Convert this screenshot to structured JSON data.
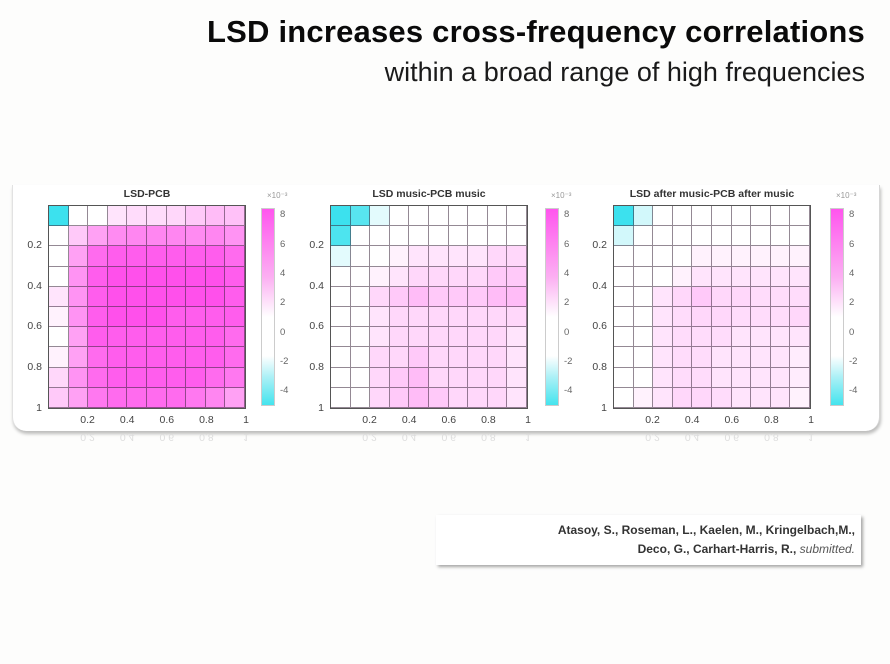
{
  "header": {
    "title": "LSD increases cross-frequency correlations",
    "subtitle": "within a broad range of high frequencies"
  },
  "citation": {
    "line1": "Atasoy, S., Roseman, L., Kaelen, M., Kringelbach,M.,",
    "line2_authors": "Deco, G., Carhart-Harris, R., ",
    "line2_status": "submitted."
  },
  "colors": {
    "positive_max": "#ff55ee",
    "zero": "#ffffff",
    "negative_min": "#44e4ee"
  },
  "chart_data": [
    {
      "type": "heatmap",
      "title": "LSD-PCB",
      "xlabel": "",
      "ylabel": "",
      "x_ticks": [
        "0.2",
        "0.4",
        "0.6",
        "0.8",
        "1"
      ],
      "y_ticks": [
        "0.2",
        "0.4",
        "0.6",
        "0.8",
        "1"
      ],
      "colorbar": {
        "ticks": [
          "8",
          "6",
          "4",
          "2",
          "0",
          "-2",
          "-4"
        ],
        "exponent": "×10⁻³",
        "range": [
          -5,
          8.5
        ]
      },
      "grid_size": [
        10,
        10
      ],
      "values": [
        [
          -4.8,
          1.0,
          1.5,
          2.5,
          2.8,
          2.8,
          3.0,
          3.5,
          4.0,
          3.8
        ],
        [
          1.0,
          3.5,
          5.0,
          5.8,
          6.0,
          6.0,
          6.0,
          5.8,
          6.0,
          5.5
        ],
        [
          0.8,
          5.0,
          7.0,
          7.5,
          7.5,
          7.5,
          7.5,
          7.5,
          7.5,
          7.0
        ],
        [
          1.5,
          5.5,
          7.5,
          8.0,
          8.0,
          8.0,
          8.0,
          8.0,
          8.0,
          7.5
        ],
        [
          2.5,
          5.5,
          7.5,
          8.0,
          8.0,
          8.0,
          8.0,
          8.0,
          8.0,
          7.5
        ],
        [
          2.0,
          5.5,
          7.5,
          8.0,
          8.0,
          8.0,
          7.5,
          7.5,
          7.5,
          7.5
        ],
        [
          1.5,
          5.0,
          7.5,
          7.5,
          7.5,
          7.5,
          7.5,
          7.5,
          7.5,
          7.0
        ],
        [
          2.0,
          5.0,
          7.0,
          7.5,
          7.5,
          7.5,
          7.5,
          7.5,
          7.5,
          7.0
        ],
        [
          3.0,
          5.5,
          7.0,
          7.5,
          7.5,
          7.5,
          7.5,
          7.5,
          7.0,
          6.5
        ],
        [
          3.5,
          5.0,
          6.5,
          7.0,
          7.0,
          7.0,
          7.0,
          6.5,
          6.0,
          5.0
        ]
      ]
    },
    {
      "type": "heatmap",
      "title": "LSD music-PCB music",
      "xlabel": "",
      "ylabel": "",
      "x_ticks": [
        "0.2",
        "0.4",
        "0.6",
        "0.8",
        "1"
      ],
      "y_ticks": [
        "0.2",
        "0.4",
        "0.6",
        "0.8",
        "1"
      ],
      "colorbar": {
        "ticks": [
          "8",
          "6",
          "4",
          "2",
          "0",
          "-2",
          "-4"
        ],
        "exponent": "×10⁻³",
        "range": [
          -5,
          8.5
        ]
      },
      "grid_size": [
        10,
        10
      ],
      "values": [
        [
          -4.8,
          -4.0,
          -1.5,
          -0.8,
          0.5,
          1.0,
          1.0,
          1.0,
          1.0,
          1.0
        ],
        [
          -4.2,
          0.5,
          1.0,
          1.0,
          1.2,
          1.5,
          1.5,
          1.5,
          1.5,
          1.5
        ],
        [
          -1.5,
          0.5,
          1.5,
          2.0,
          2.5,
          2.5,
          2.5,
          2.5,
          3.0,
          3.0
        ],
        [
          -0.8,
          1.0,
          2.0,
          2.5,
          3.0,
          3.0,
          3.0,
          3.0,
          3.5,
          3.5
        ],
        [
          0.5,
          1.0,
          3.0,
          3.5,
          4.0,
          3.5,
          3.5,
          3.5,
          4.0,
          4.0
        ],
        [
          0.5,
          1.0,
          2.5,
          3.0,
          3.0,
          3.0,
          3.0,
          3.0,
          3.0,
          3.0
        ],
        [
          0.5,
          1.0,
          2.5,
          3.0,
          3.0,
          3.0,
          3.0,
          3.0,
          3.0,
          2.5
        ],
        [
          0.5,
          1.0,
          3.0,
          3.0,
          3.5,
          3.0,
          3.0,
          3.0,
          3.0,
          2.5
        ],
        [
          0.5,
          1.5,
          3.0,
          3.5,
          4.0,
          3.0,
          3.0,
          3.0,
          3.0,
          2.5
        ],
        [
          0.5,
          1.5,
          3.0,
          3.5,
          4.0,
          3.5,
          3.0,
          3.0,
          3.0,
          2.5
        ]
      ]
    },
    {
      "type": "heatmap",
      "title": "LSD after music-PCB after music",
      "xlabel": "",
      "ylabel": "",
      "x_ticks": [
        "0.2",
        "0.4",
        "0.6",
        "0.8",
        "1"
      ],
      "y_ticks": [
        "0.2",
        "0.4",
        "0.6",
        "0.8",
        "1"
      ],
      "colorbar": {
        "ticks": [
          "8",
          "6",
          "4",
          "2",
          "0",
          "-2",
          "-4"
        ],
        "exponent": "×10⁻³",
        "range": [
          -5,
          8.5
        ]
      },
      "grid_size": [
        10,
        10
      ],
      "values": [
        [
          -4.8,
          -1.8,
          0.5,
          0.5,
          0.8,
          1.0,
          1.0,
          1.0,
          1.0,
          1.2
        ],
        [
          -1.8,
          0.5,
          0.8,
          1.0,
          1.0,
          1.2,
          1.2,
          1.5,
          1.5,
          1.5
        ],
        [
          0.5,
          0.8,
          1.2,
          1.5,
          2.0,
          2.0,
          2.0,
          2.0,
          2.0,
          2.0
        ],
        [
          0.8,
          1.0,
          1.5,
          2.0,
          2.5,
          2.5,
          2.5,
          2.5,
          2.5,
          2.5
        ],
        [
          0.8,
          0.8,
          2.5,
          3.0,
          3.5,
          3.0,
          3.0,
          2.8,
          2.8,
          2.8
        ],
        [
          1.0,
          1.0,
          2.5,
          2.8,
          3.0,
          3.0,
          2.8,
          2.8,
          2.8,
          3.0
        ],
        [
          1.0,
          1.0,
          2.5,
          2.8,
          2.8,
          2.8,
          2.5,
          2.5,
          2.5,
          2.5
        ],
        [
          1.0,
          1.2,
          2.5,
          2.8,
          2.8,
          2.5,
          2.5,
          2.5,
          2.5,
          2.2
        ],
        [
          1.2,
          1.5,
          2.5,
          2.8,
          2.8,
          2.5,
          2.5,
          2.5,
          2.5,
          2.2
        ],
        [
          1.5,
          2.0,
          2.5,
          3.0,
          3.0,
          2.8,
          2.5,
          2.5,
          2.5,
          2.0
        ]
      ]
    }
  ]
}
